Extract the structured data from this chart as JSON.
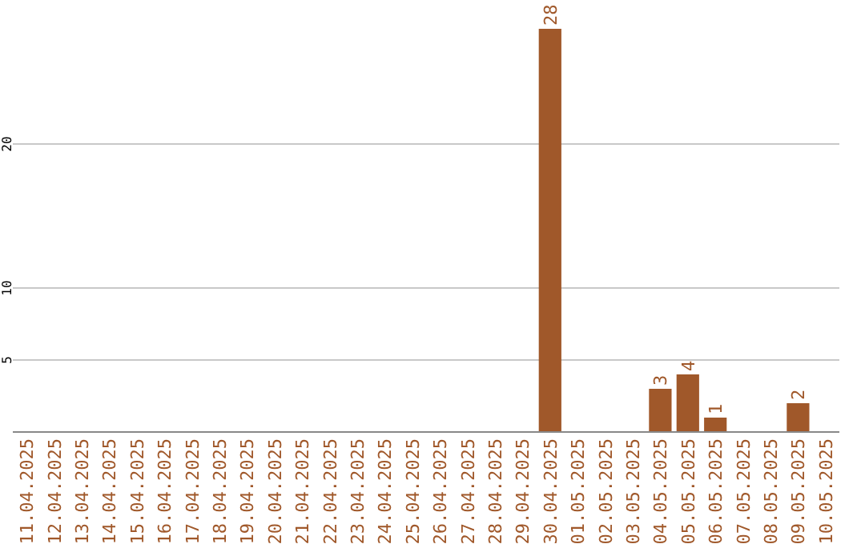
{
  "chart_data": {
    "type": "bar",
    "categories": [
      "11.04.2025",
      "12.04.2025",
      "13.04.2025",
      "14.04.2025",
      "15.04.2025",
      "16.04.2025",
      "17.04.2025",
      "18.04.2025",
      "19.04.2025",
      "20.04.2025",
      "21.04.2025",
      "22.04.2025",
      "23.04.2025",
      "24.04.2025",
      "25.04.2025",
      "26.04.2025",
      "27.04.2025",
      "28.04.2025",
      "29.04.2025",
      "30.04.2025",
      "01.05.2025",
      "02.05.2025",
      "03.05.2025",
      "04.05.2025",
      "05.05.2025",
      "06.05.2025",
      "07.05.2025",
      "08.05.2025",
      "09.05.2025",
      "10.05.2025"
    ],
    "values": [
      0,
      0,
      0,
      0,
      0,
      0,
      0,
      0,
      0,
      0,
      0,
      0,
      0,
      0,
      0,
      0,
      0,
      0,
      0,
      28,
      0,
      0,
      0,
      3,
      4,
      1,
      0,
      0,
      2,
      0
    ],
    "value_labels": [
      null,
      null,
      null,
      null,
      null,
      null,
      null,
      null,
      null,
      null,
      null,
      null,
      null,
      null,
      null,
      null,
      null,
      null,
      null,
      "28",
      null,
      null,
      null,
      "3",
      "4",
      "1",
      null,
      null,
      "2",
      null
    ],
    "color": "#a0582a",
    "ylim": [
      0,
      30
    ],
    "yticks": [
      5,
      10,
      20
    ],
    "grid": "y"
  }
}
